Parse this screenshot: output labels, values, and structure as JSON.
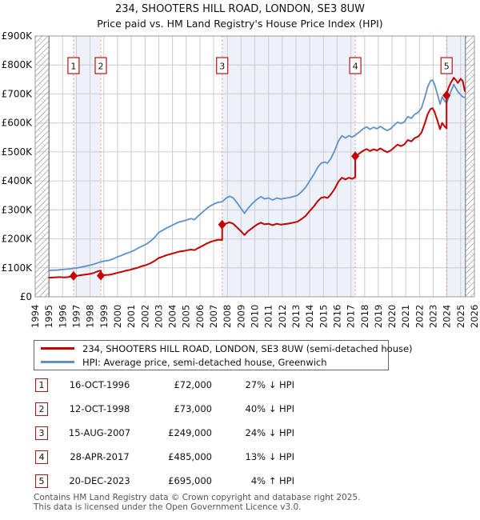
{
  "title": "234, SHOOTERS HILL ROAD, LONDON, SE3 8UW",
  "subtitle": "Price paid vs. HM Land Registry's House Price Index (HPI)",
  "chart_data": {
    "type": "line",
    "y_unit": "GBP thousands",
    "x_axis": {
      "min": 1994,
      "max": 2026,
      "tick_years": [
        1994,
        1995,
        1996,
        1997,
        1998,
        1999,
        2000,
        2001,
        2002,
        2003,
        2004,
        2005,
        2006,
        2007,
        2008,
        2009,
        2010,
        2011,
        2012,
        2013,
        2014,
        2015,
        2016,
        2017,
        2018,
        2019,
        2020,
        2021,
        2022,
        2023,
        2024,
        2025,
        2026
      ]
    },
    "y_axis": {
      "min": 0,
      "max": 900,
      "ticks": [
        {
          "value": 0,
          "label": "£0"
        },
        {
          "value": 100,
          "label": "£100K"
        },
        {
          "value": 200,
          "label": "£200K"
        },
        {
          "value": 300,
          "label": "£300K"
        },
        {
          "value": 400,
          "label": "£400K"
        },
        {
          "value": 500,
          "label": "£500K"
        },
        {
          "value": 600,
          "label": "£600K"
        },
        {
          "value": 700,
          "label": "£700K"
        },
        {
          "value": 800,
          "label": "£800K"
        },
        {
          "value": 900,
          "label": "£900K"
        }
      ]
    },
    "series": [
      {
        "name": "HPI: Average price, semi-detached house, Greenwich",
        "color": "#6090c8",
        "points": [
          [
            1995.0,
            91
          ],
          [
            1995.3,
            92
          ],
          [
            1995.6,
            92
          ],
          [
            1995.9,
            94
          ],
          [
            1996.2,
            95
          ],
          [
            1996.5,
            96
          ],
          [
            1996.79,
            98
          ],
          [
            1997.1,
            100
          ],
          [
            1997.4,
            103
          ],
          [
            1997.7,
            106
          ],
          [
            1998.0,
            109
          ],
          [
            1998.3,
            113
          ],
          [
            1998.6,
            118
          ],
          [
            1998.78,
            121
          ],
          [
            1999.1,
            124
          ],
          [
            1999.4,
            126
          ],
          [
            1999.7,
            131
          ],
          [
            2000.0,
            138
          ],
          [
            2000.3,
            143
          ],
          [
            2000.6,
            149
          ],
          [
            2000.9,
            154
          ],
          [
            2001.2,
            160
          ],
          [
            2001.5,
            168
          ],
          [
            2001.8,
            175
          ],
          [
            2002.1,
            182
          ],
          [
            2002.4,
            192
          ],
          [
            2002.7,
            205
          ],
          [
            2003.0,
            222
          ],
          [
            2003.3,
            230
          ],
          [
            2003.6,
            238
          ],
          [
            2003.9,
            245
          ],
          [
            2004.2,
            252
          ],
          [
            2004.5,
            258
          ],
          [
            2004.8,
            262
          ],
          [
            2005.1,
            266
          ],
          [
            2005.35,
            270
          ],
          [
            2005.6,
            266
          ],
          [
            2005.9,
            280
          ],
          [
            2006.2,
            292
          ],
          [
            2006.5,
            305
          ],
          [
            2006.8,
            315
          ],
          [
            2007.1,
            322
          ],
          [
            2007.35,
            326
          ],
          [
            2007.62,
            328
          ],
          [
            2007.9,
            340
          ],
          [
            2008.15,
            347
          ],
          [
            2008.4,
            342
          ],
          [
            2008.7,
            325
          ],
          [
            2009.0,
            305
          ],
          [
            2009.25,
            288
          ],
          [
            2009.5,
            305
          ],
          [
            2009.75,
            318
          ],
          [
            2010.0,
            330
          ],
          [
            2010.2,
            338
          ],
          [
            2010.45,
            346
          ],
          [
            2010.7,
            338
          ],
          [
            2011.0,
            341
          ],
          [
            2011.3,
            334
          ],
          [
            2011.6,
            341
          ],
          [
            2011.9,
            337
          ],
          [
            2012.2,
            340
          ],
          [
            2012.5,
            342
          ],
          [
            2012.8,
            346
          ],
          [
            2013.1,
            350
          ],
          [
            2013.4,
            362
          ],
          [
            2013.7,
            378
          ],
          [
            2014.0,
            400
          ],
          [
            2014.3,
            422
          ],
          [
            2014.6,
            448
          ],
          [
            2014.85,
            462
          ],
          [
            2015.1,
            465
          ],
          [
            2015.3,
            461
          ],
          [
            2015.55,
            478
          ],
          [
            2015.8,
            502
          ],
          [
            2016.1,
            538
          ],
          [
            2016.35,
            556
          ],
          [
            2016.6,
            548
          ],
          [
            2016.85,
            556
          ],
          [
            2017.1,
            551
          ],
          [
            2017.32,
            558
          ],
          [
            2017.6,
            568
          ],
          [
            2017.9,
            580
          ],
          [
            2018.15,
            586
          ],
          [
            2018.4,
            578
          ],
          [
            2018.65,
            585
          ],
          [
            2018.9,
            580
          ],
          [
            2019.15,
            588
          ],
          [
            2019.4,
            580
          ],
          [
            2019.65,
            574
          ],
          [
            2019.9,
            580
          ],
          [
            2020.15,
            592
          ],
          [
            2020.4,
            603
          ],
          [
            2020.65,
            598
          ],
          [
            2020.9,
            604
          ],
          [
            2021.15,
            622
          ],
          [
            2021.4,
            616
          ],
          [
            2021.65,
            630
          ],
          [
            2021.9,
            636
          ],
          [
            2022.15,
            652
          ],
          [
            2022.4,
            690
          ],
          [
            2022.6,
            725
          ],
          [
            2022.8,
            745
          ],
          [
            2022.95,
            748
          ],
          [
            2023.1,
            733
          ],
          [
            2023.3,
            700
          ],
          [
            2023.5,
            665
          ],
          [
            2023.65,
            690
          ],
          [
            2023.8,
            678
          ],
          [
            2023.97,
            668
          ],
          [
            2024.1,
            685
          ],
          [
            2024.3,
            710
          ],
          [
            2024.5,
            733
          ],
          [
            2024.65,
            720
          ],
          [
            2024.8,
            708
          ],
          [
            2025.0,
            697
          ],
          [
            2025.15,
            690
          ],
          [
            2025.3,
            688
          ]
        ]
      },
      {
        "name": "234, SHOOTERS HILL ROAD, LONDON, SE3 8UW (semi-detached house)",
        "color": "#c40000",
        "points": [
          [
            1995.0,
            66
          ],
          [
            1995.4,
            67
          ],
          [
            1995.8,
            68
          ],
          [
            1996.1,
            67
          ],
          [
            1996.4,
            68
          ],
          [
            1996.79,
            72
          ],
          [
            1997.1,
            73
          ],
          [
            1997.4,
            75
          ],
          [
            1997.7,
            77
          ],
          [
            1998.0,
            79
          ],
          [
            1998.25,
            82
          ],
          [
            1998.5,
            87
          ],
          [
            1998.7,
            90
          ],
          [
            1998.78,
            90
          ],
          [
            1998.78,
            73
          ],
          [
            1999.1,
            75
          ],
          [
            1999.4,
            76
          ],
          [
            1999.7,
            79
          ],
          [
            2000.0,
            83
          ],
          [
            2000.3,
            86
          ],
          [
            2000.6,
            90
          ],
          [
            2000.9,
            93
          ],
          [
            2001.2,
            97
          ],
          [
            2001.5,
            101
          ],
          [
            2001.8,
            106
          ],
          [
            2002.1,
            110
          ],
          [
            2002.4,
            116
          ],
          [
            2002.7,
            124
          ],
          [
            2003.0,
            134
          ],
          [
            2003.3,
            139
          ],
          [
            2003.6,
            144
          ],
          [
            2003.9,
            148
          ],
          [
            2004.2,
            152
          ],
          [
            2004.5,
            156
          ],
          [
            2004.8,
            158
          ],
          [
            2005.1,
            161
          ],
          [
            2005.35,
            163
          ],
          [
            2005.6,
            161
          ],
          [
            2005.9,
            169
          ],
          [
            2006.2,
            176
          ],
          [
            2006.5,
            184
          ],
          [
            2006.8,
            190
          ],
          [
            2007.1,
            194
          ],
          [
            2007.35,
            197
          ],
          [
            2007.62,
            196
          ],
          [
            2007.62,
            249
          ],
          [
            2007.9,
            253
          ],
          [
            2008.15,
            257
          ],
          [
            2008.4,
            253
          ],
          [
            2008.7,
            240
          ],
          [
            2009.0,
            226
          ],
          [
            2009.25,
            213
          ],
          [
            2009.5,
            226
          ],
          [
            2009.75,
            235
          ],
          [
            2010.0,
            244
          ],
          [
            2010.2,
            250
          ],
          [
            2010.45,
            256
          ],
          [
            2010.7,
            250
          ],
          [
            2011.0,
            252
          ],
          [
            2011.3,
            247
          ],
          [
            2011.6,
            252
          ],
          [
            2011.9,
            249
          ],
          [
            2012.2,
            251
          ],
          [
            2012.5,
            253
          ],
          [
            2012.8,
            256
          ],
          [
            2013.1,
            259
          ],
          [
            2013.4,
            268
          ],
          [
            2013.7,
            279
          ],
          [
            2014.0,
            296
          ],
          [
            2014.3,
            312
          ],
          [
            2014.6,
            331
          ],
          [
            2014.85,
            342
          ],
          [
            2015.1,
            344
          ],
          [
            2015.3,
            341
          ],
          [
            2015.55,
            354
          ],
          [
            2015.8,
            371
          ],
          [
            2016.1,
            398
          ],
          [
            2016.35,
            411
          ],
          [
            2016.6,
            405
          ],
          [
            2016.85,
            411
          ],
          [
            2017.1,
            407
          ],
          [
            2017.32,
            413
          ],
          [
            2017.32,
            485
          ],
          [
            2017.6,
            494
          ],
          [
            2017.9,
            504
          ],
          [
            2018.15,
            510
          ],
          [
            2018.4,
            503
          ],
          [
            2018.65,
            509
          ],
          [
            2018.9,
            505
          ],
          [
            2019.15,
            512
          ],
          [
            2019.4,
            505
          ],
          [
            2019.65,
            499
          ],
          [
            2019.9,
            505
          ],
          [
            2020.15,
            515
          ],
          [
            2020.4,
            525
          ],
          [
            2020.65,
            520
          ],
          [
            2020.9,
            526
          ],
          [
            2021.15,
            541
          ],
          [
            2021.4,
            536
          ],
          [
            2021.65,
            548
          ],
          [
            2021.9,
            553
          ],
          [
            2022.15,
            567
          ],
          [
            2022.4,
            600
          ],
          [
            2022.6,
            631
          ],
          [
            2022.8,
            648
          ],
          [
            2022.95,
            651
          ],
          [
            2023.1,
            638
          ],
          [
            2023.3,
            609
          ],
          [
            2023.5,
            578
          ],
          [
            2023.65,
            600
          ],
          [
            2023.8,
            590
          ],
          [
            2023.97,
            581
          ],
          [
            2023.97,
            695
          ],
          [
            2024.1,
            720
          ],
          [
            2024.3,
            740
          ],
          [
            2024.5,
            756
          ],
          [
            2024.65,
            748
          ],
          [
            2024.8,
            738
          ],
          [
            2025.0,
            752
          ],
          [
            2025.15,
            745
          ],
          [
            2025.3,
            710
          ]
        ]
      }
    ],
    "sales_markers": [
      {
        "n": "1",
        "year": 1996.79,
        "value": 72
      },
      {
        "n": "2",
        "year": 1998.78,
        "value": 73
      },
      {
        "n": "3",
        "year": 2007.62,
        "value": 249
      },
      {
        "n": "4",
        "year": 2017.32,
        "value": 485
      },
      {
        "n": "5",
        "year": 2023.97,
        "value": 695
      }
    ],
    "ownership_bands": [
      [
        1996.79,
        1998.78
      ],
      [
        2007.62,
        2017.32
      ],
      [
        2023.97,
        2025.35
      ]
    ],
    "no_data_hatch": [
      [
        1994.0,
        1995.0
      ],
      [
        2025.35,
        2026.0
      ]
    ],
    "colors": {
      "band": "#ecf1fa",
      "grid": "#cccccc",
      "border": "#999999",
      "hatch_line": "#aaaaaa",
      "hatch_edge": "#666666",
      "sale_dash": "#f28f8f",
      "marker_box_border": "#bb1111"
    }
  },
  "legend": {
    "items": [
      {
        "label": "234, SHOOTERS HILL ROAD, LONDON, SE3 8UW (semi-detached house)",
        "color": "#c40000"
      },
      {
        "label": "HPI: Average price, semi-detached house, Greenwich",
        "color": "#6090c8"
      }
    ]
  },
  "sales": {
    "rows": [
      {
        "num": "1",
        "date": "16-OCT-1996",
        "price": "£72,000",
        "vs_hpi": "27% ↓ HPI"
      },
      {
        "num": "2",
        "date": "12-OCT-1998",
        "price": "£73,000",
        "vs_hpi": "40% ↓ HPI"
      },
      {
        "num": "3",
        "date": "15-AUG-2007",
        "price": "£249,000",
        "vs_hpi": "24% ↓ HPI"
      },
      {
        "num": "4",
        "date": "28-APR-2017",
        "price": "£485,000",
        "vs_hpi": "13% ↓ HPI"
      },
      {
        "num": "5",
        "date": "20-DEC-2023",
        "price": "£695,000",
        "vs_hpi": "4% ↑ HPI"
      }
    ]
  },
  "footer": {
    "line1": "Contains HM Land Registry data © Crown copyright and database right 2025.",
    "line2": "This data is licensed under the Open Government Licence v3.0."
  }
}
